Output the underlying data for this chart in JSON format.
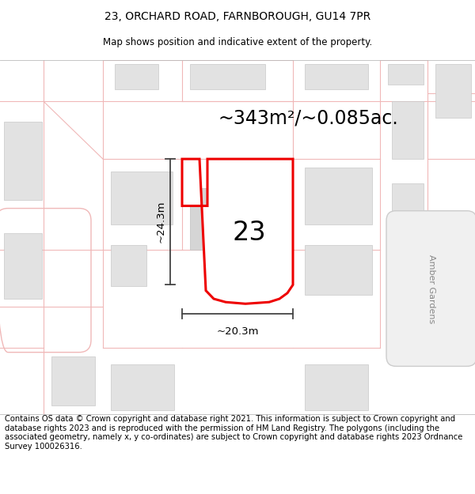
{
  "title": "23, ORCHARD ROAD, FARNBOROUGH, GU14 7PR",
  "subtitle": "Map shows position and indicative extent of the property.",
  "area_label": "~343m²/~0.085ac.",
  "width_label": "~20.3m",
  "height_label": "~24.3m",
  "number_label": "23",
  "street_label": "Amber Gardens",
  "footer": "Contains OS data © Crown copyright and database right 2021. This information is subject to Crown copyright and database rights 2023 and is reproduced with the permission of HM Land Registry. The polygons (including the associated geometry, namely x, y co-ordinates) are subject to Crown copyright and database rights 2023 Ordnance Survey 100026316.",
  "map_bg": "#f7f7f7",
  "white_area_bg": "#ffffff",
  "road_color": "#f0b8b8",
  "building_color": "#e2e2e2",
  "building_stroke": "#c8c8c8",
  "property_fill": "#ffffff",
  "property_stroke": "#ee0000",
  "title_fontsize": 10,
  "subtitle_fontsize": 8.5,
  "area_label_fontsize": 17,
  "dim_label_fontsize": 9.5,
  "number_fontsize": 24,
  "footer_fontsize": 7.2,
  "amber_gardens_fontsize": 8
}
